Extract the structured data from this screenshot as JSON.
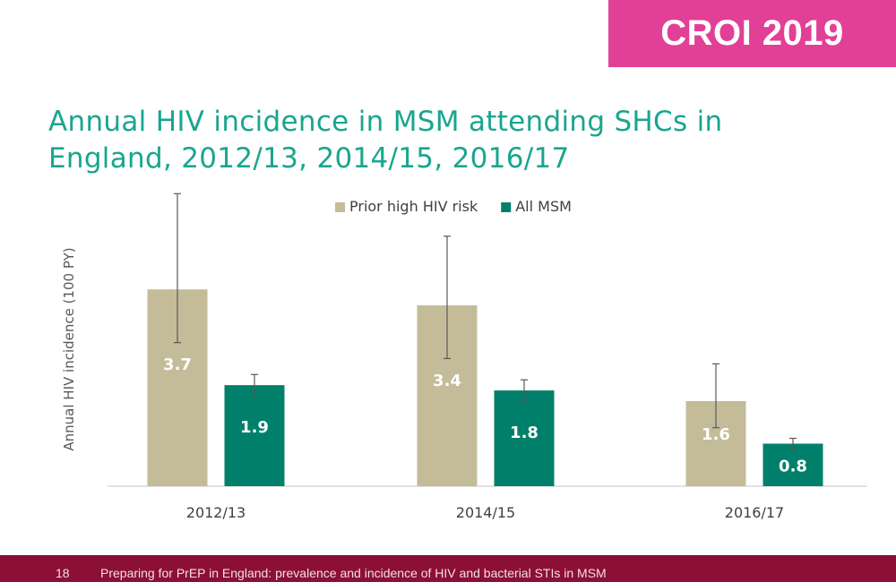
{
  "badge": {
    "text": "CROI 2019"
  },
  "slide": {
    "title_line1": "Annual HIV incidence in MSM attending SHCs in",
    "title_line2": "England, 2012/13, 2014/15, 2016/17"
  },
  "footer": {
    "page_number": "18",
    "text": "Preparing for PrEP in England: prevalence and incidence of HIV and bacterial STIs in MSM"
  },
  "colors": {
    "prior_high_risk": "#c4bc98",
    "all_msm": "#00806a",
    "title": "#1aa58f",
    "badge": "#e23f96",
    "footer": "#8b0f36"
  },
  "chart_data": {
    "type": "bar",
    "title": "",
    "xlabel": "",
    "ylabel": "Annual HIV incidence (100 PY)",
    "categories": [
      "2012/13",
      "2014/15",
      "2016/17"
    ],
    "ylim": [
      0,
      5.5
    ],
    "grid": false,
    "legend_position": "top-center",
    "series": [
      {
        "name": "Prior high HIV risk",
        "values": [
          3.7,
          3.4,
          1.6
        ],
        "labels": [
          "3.7",
          "3.4",
          "1.6"
        ],
        "error_low": [
          2.7,
          2.4,
          1.1
        ],
        "error_high": [
          5.5,
          4.7,
          2.3
        ],
        "color": "#c4bc98"
      },
      {
        "name": "All MSM",
        "values": [
          1.9,
          1.8,
          0.8
        ],
        "labels": [
          "1.9",
          "1.8",
          "0.8"
        ],
        "error_low": [
          1.7,
          1.6,
          0.7
        ],
        "error_high": [
          2.1,
          2.0,
          0.9
        ],
        "color": "#00806a"
      }
    ]
  }
}
